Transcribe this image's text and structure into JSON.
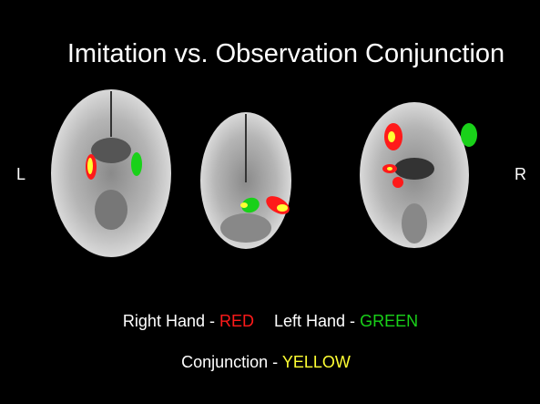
{
  "title": "Imitation vs. Observation Conjunction",
  "side_labels": {
    "left": "L",
    "right": "R"
  },
  "legend": [
    {
      "label": "Right Hand - ",
      "color_word": "RED"
    },
    {
      "label": "Left Hand - ",
      "color_word": "GREEN"
    },
    {
      "label": "Conjunction - ",
      "color_word": "YELLOW"
    }
  ]
}
